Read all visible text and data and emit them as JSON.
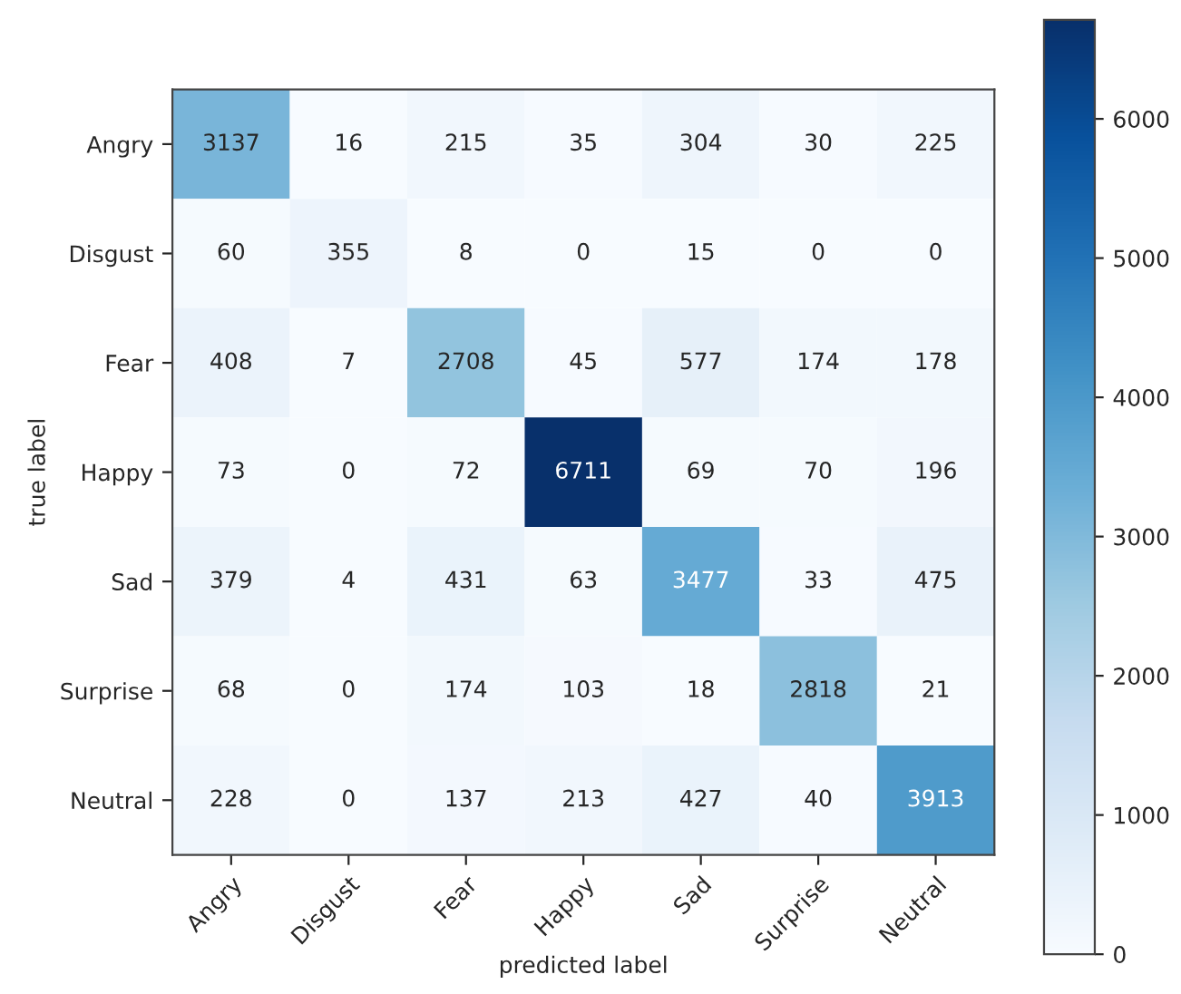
{
  "chart_data": {
    "type": "heatmap",
    "xlabel": "predicted label",
    "ylabel": "true label",
    "categories": [
      "Angry",
      "Disgust",
      "Fear",
      "Happy",
      "Sad",
      "Surprise",
      "Neutral"
    ],
    "y_categories": [
      "Angry",
      "Disgust",
      "Fear",
      "Happy",
      "Sad",
      "Surprise",
      "Neutral"
    ],
    "cells": [
      [
        3137,
        16,
        215,
        35,
        304,
        30,
        225
      ],
      [
        60,
        355,
        8,
        0,
        15,
        0,
        0
      ],
      [
        408,
        7,
        2708,
        45,
        577,
        174,
        178
      ],
      [
        73,
        0,
        72,
        6711,
        69,
        70,
        196
      ],
      [
        379,
        4,
        431,
        63,
        3477,
        33,
        475
      ],
      [
        68,
        0,
        174,
        103,
        18,
        2818,
        21
      ],
      [
        228,
        0,
        137,
        213,
        427,
        40,
        3913
      ]
    ],
    "clim": [
      0,
      6711
    ],
    "cticks": [
      0,
      1000,
      2000,
      3000,
      4000,
      5000,
      6000
    ],
    "data_labels": true,
    "grid": false
  }
}
